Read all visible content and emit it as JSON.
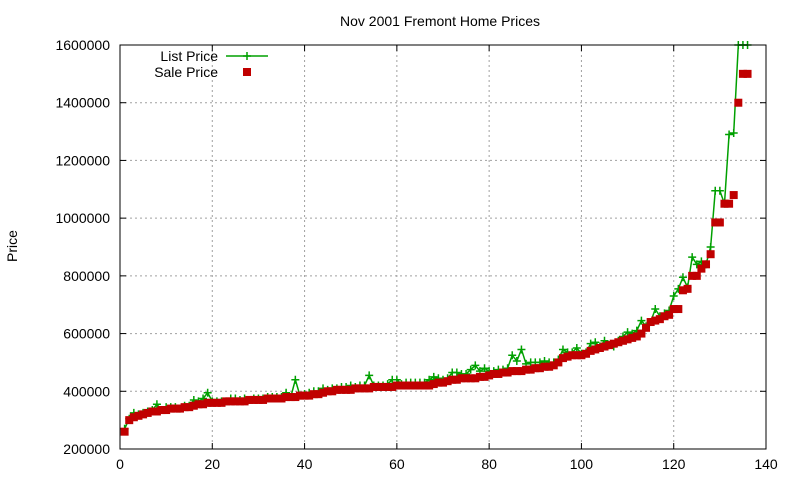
{
  "chart_data": {
    "type": "line",
    "title": "Nov 2001 Fremont Home Prices",
    "xlabel": "",
    "ylabel": "Price",
    "xlim": [
      0,
      140
    ],
    "ylim": [
      200000,
      1600000
    ],
    "xticks": [
      "0",
      "20",
      "40",
      "60",
      "80",
      "100",
      "120",
      "140"
    ],
    "yticks": [
      "200000",
      "400000",
      "600000",
      "800000",
      "1000000",
      "1200000",
      "1400000",
      "1600000"
    ],
    "grid": true,
    "legend_position": "top-left",
    "series": [
      {
        "name": "List Price",
        "style": "line-plus",
        "color": "#00a000",
        "x": [
          1,
          2,
          3,
          4,
          5,
          6,
          7,
          8,
          9,
          10,
          11,
          12,
          13,
          14,
          15,
          16,
          17,
          18,
          19,
          20,
          21,
          22,
          23,
          24,
          25,
          26,
          27,
          28,
          29,
          30,
          31,
          32,
          33,
          34,
          35,
          36,
          37,
          38,
          39,
          40,
          41,
          42,
          43,
          44,
          45,
          46,
          47,
          48,
          49,
          50,
          51,
          52,
          53,
          54,
          55,
          56,
          57,
          58,
          59,
          60,
          61,
          62,
          63,
          64,
          65,
          66,
          67,
          68,
          69,
          70,
          71,
          72,
          73,
          74,
          75,
          76,
          77,
          78,
          79,
          80,
          81,
          82,
          83,
          84,
          85,
          86,
          87,
          88,
          89,
          90,
          91,
          92,
          93,
          94,
          95,
          96,
          97,
          98,
          99,
          100,
          101,
          102,
          103,
          104,
          105,
          106,
          107,
          108,
          109,
          110,
          111,
          112,
          113,
          114,
          115,
          116,
          117,
          118,
          119,
          120,
          121,
          122,
          123,
          124,
          125,
          126,
          127,
          128,
          129,
          130,
          131,
          132,
          133,
          134,
          135,
          136
        ],
        "y": [
          270000,
          305000,
          325000,
          320000,
          325000,
          330000,
          335000,
          355000,
          335000,
          345000,
          345000,
          345000,
          340000,
          350000,
          350000,
          370000,
          365000,
          375000,
          395000,
          365000,
          365000,
          365000,
          365000,
          375000,
          375000,
          370000,
          375000,
          370000,
          375000,
          375000,
          375000,
          380000,
          380000,
          380000,
          380000,
          395000,
          380000,
          440000,
          385000,
          390000,
          395000,
          400000,
          400000,
          410000,
          405000,
          410000,
          410000,
          415000,
          415000,
          420000,
          415000,
          420000,
          420000,
          455000,
          420000,
          420000,
          420000,
          425000,
          440000,
          440000,
          425000,
          430000,
          430000,
          430000,
          430000,
          430000,
          440000,
          450000,
          445000,
          440000,
          445000,
          465000,
          465000,
          460000,
          460000,
          475000,
          490000,
          470000,
          480000,
          470000,
          470000,
          475000,
          475000,
          480000,
          525000,
          505000,
          545000,
          495000,
          500000,
          500000,
          500000,
          505000,
          500000,
          500000,
          510000,
          545000,
          535000,
          535000,
          550000,
          530000,
          535000,
          565000,
          570000,
          555000,
          575000,
          560000,
          555000,
          575000,
          590000,
          605000,
          600000,
          610000,
          645000,
          625000,
          640000,
          685000,
          660000,
          670000,
          680000,
          730000,
          755000,
          795000,
          760000,
          865000,
          840000,
          850000,
          840000,
          900000,
          1095000,
          1095000,
          1050000,
          1290000,
          1295000,
          1600000,
          1600000,
          1600000
        ]
      },
      {
        "name": "Sale Price",
        "style": "square",
        "color": "#c00000",
        "x": [
          1,
          2,
          3,
          4,
          5,
          6,
          7,
          8,
          9,
          10,
          11,
          12,
          13,
          14,
          15,
          16,
          17,
          18,
          19,
          20,
          21,
          22,
          23,
          24,
          25,
          26,
          27,
          28,
          29,
          30,
          31,
          32,
          33,
          34,
          35,
          36,
          37,
          38,
          39,
          40,
          41,
          42,
          43,
          44,
          45,
          46,
          47,
          48,
          49,
          50,
          51,
          52,
          53,
          54,
          55,
          56,
          57,
          58,
          59,
          60,
          61,
          62,
          63,
          64,
          65,
          66,
          67,
          68,
          69,
          70,
          71,
          72,
          73,
          74,
          75,
          76,
          77,
          78,
          79,
          80,
          81,
          82,
          83,
          84,
          85,
          86,
          87,
          88,
          89,
          90,
          91,
          92,
          93,
          94,
          95,
          96,
          97,
          98,
          99,
          100,
          101,
          102,
          103,
          104,
          105,
          106,
          107,
          108,
          109,
          110,
          111,
          112,
          113,
          114,
          115,
          116,
          117,
          118,
          119,
          120,
          121,
          122,
          123,
          124,
          125,
          126,
          127,
          128,
          129,
          130,
          131,
          132,
          133,
          134,
          135,
          136
        ],
        "y": [
          260000,
          300000,
          310000,
          315000,
          320000,
          325000,
          330000,
          330000,
          335000,
          335000,
          340000,
          340000,
          340000,
          345000,
          345000,
          350000,
          355000,
          355000,
          360000,
          360000,
          360000,
          360000,
          365000,
          365000,
          365000,
          365000,
          365000,
          370000,
          370000,
          370000,
          370000,
          375000,
          375000,
          375000,
          375000,
          380000,
          380000,
          380000,
          385000,
          385000,
          385000,
          390000,
          390000,
          395000,
          400000,
          400000,
          405000,
          405000,
          405000,
          405000,
          410000,
          410000,
          410000,
          410000,
          415000,
          415000,
          415000,
          415000,
          415000,
          420000,
          420000,
          420000,
          420000,
          420000,
          420000,
          420000,
          420000,
          425000,
          430000,
          430000,
          435000,
          440000,
          440000,
          445000,
          445000,
          445000,
          445000,
          450000,
          450000,
          455000,
          460000,
          460000,
          465000,
          465000,
          470000,
          470000,
          470000,
          475000,
          475000,
          480000,
          480000,
          485000,
          485000,
          490000,
          500000,
          515000,
          520000,
          525000,
          525000,
          525000,
          530000,
          540000,
          545000,
          550000,
          555000,
          560000,
          565000,
          570000,
          575000,
          580000,
          585000,
          590000,
          600000,
          620000,
          640000,
          645000,
          650000,
          660000,
          665000,
          685000,
          685000,
          750000,
          755000,
          800000,
          800000,
          825000,
          840000,
          875000,
          985000,
          985000,
          1050000,
          1050000,
          1080000,
          1400000,
          1500000,
          1500000
        ]
      }
    ]
  }
}
